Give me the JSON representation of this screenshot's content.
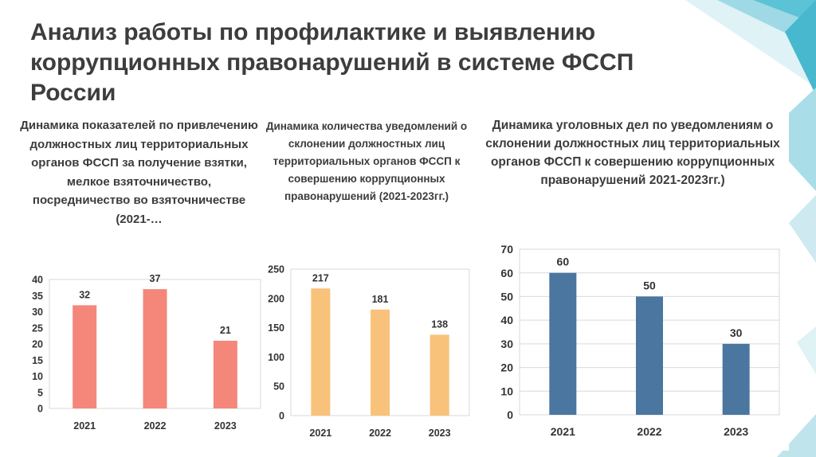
{
  "slide": {
    "title": "Анализ работы по профилактике и выявлению коррупционных правонарушений в системе ФССП России"
  },
  "chart_data": [
    {
      "type": "bar",
      "title": "Динамика показателей по привлечению должностных лиц территориальных органов ФССП за получение взятки, мелкое взяточничество, посредничество во взяточничестве (2021-…",
      "categories": [
        "2021",
        "2022",
        "2023"
      ],
      "values": [
        32,
        37,
        21
      ],
      "yticks": [
        "0",
        "5",
        "10",
        "15",
        "20",
        "25",
        "30",
        "35",
        "40"
      ],
      "ylim": [
        0,
        40
      ],
      "color": "#f4877a",
      "grid": false
    },
    {
      "type": "bar",
      "title": "Динамика количества уведомлений о склонении должностных лиц территориальных органов ФССП к совершению коррупционных правонарушений (2021-2023гг.)",
      "categories": [
        "2021",
        "2022",
        "2023"
      ],
      "values": [
        217,
        181,
        138
      ],
      "yticks": [
        "0",
        "50",
        "100",
        "150",
        "200",
        "250"
      ],
      "ylim": [
        0,
        250
      ],
      "color": "#f8c27a",
      "grid": false
    },
    {
      "type": "bar",
      "title": "Динамика уголовных дел по уведомлениям о склонении должностных лиц территориальных органов ФССП к совершению коррупционных правонарушений 2021-2023гг.)",
      "categories": [
        "2021",
        "2022",
        "2023"
      ],
      "values": [
        60,
        50,
        30
      ],
      "yticks": [
        "0",
        "10",
        "20",
        "30",
        "40",
        "50",
        "60",
        "70"
      ],
      "ylim": [
        0,
        70
      ],
      "color": "#4a76a0",
      "grid": true
    }
  ]
}
